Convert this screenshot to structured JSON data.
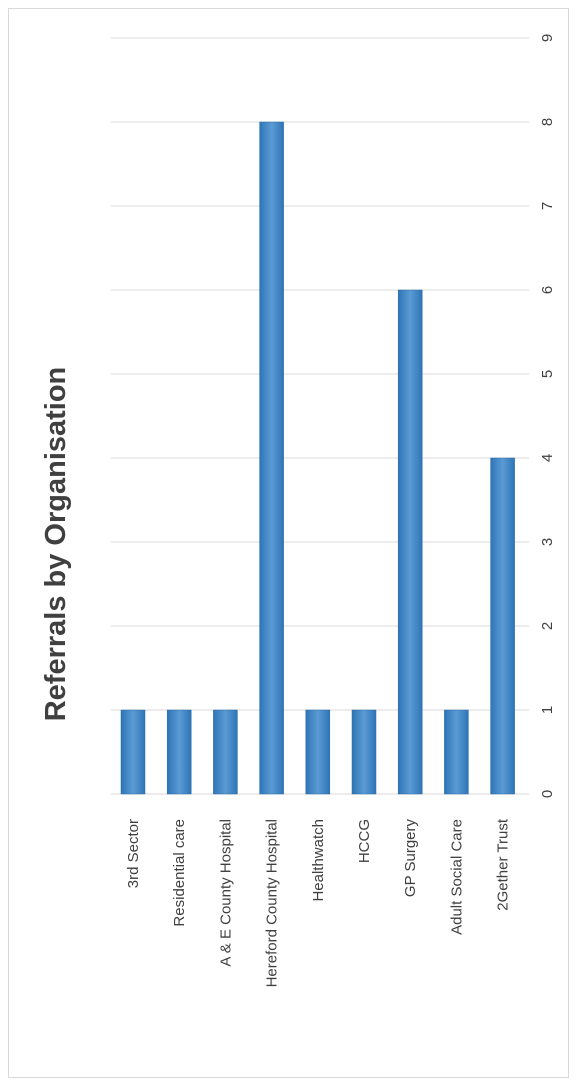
{
  "chart_data": {
    "type": "bar",
    "orientation": "vertical",
    "title": "Referrals by Organisation",
    "categories": [
      "3rd Sector",
      "Residential care",
      "A & E  County Hospital",
      "Hereford County Hospital",
      "Healthwatch",
      "HCCG",
      "GP Surgery",
      "Adult Social Care",
      "2Gether Trust"
    ],
    "values": [
      1,
      1,
      1,
      8,
      1,
      1,
      6,
      1,
      4
    ],
    "value_axis": {
      "min": 0,
      "max": 9,
      "step": 1,
      "ticks": [
        "0",
        "1",
        "2",
        "3",
        "4",
        "5",
        "6",
        "7",
        "8",
        "9"
      ]
    },
    "grid": true,
    "legend": "none",
    "colors": {
      "bar": "#2e75b6",
      "bar_light": "#5b9bd5",
      "grid": "#d9d9d9",
      "text": "#404040",
      "border": "#d9d9d9"
    }
  }
}
